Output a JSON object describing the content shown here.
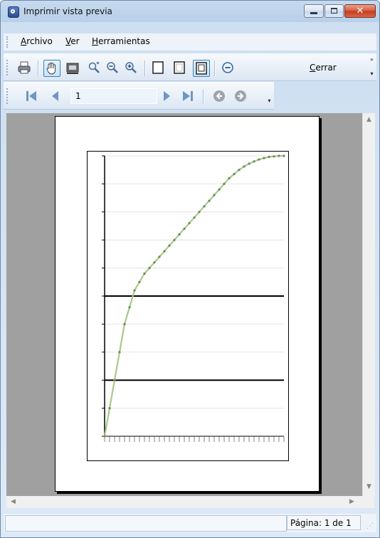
{
  "window": {
    "title": "Imprimir vista previa",
    "title_icon": "print-preview-app-icon",
    "controls": [
      "minimize-icon",
      "maximize-icon",
      "close-icon"
    ]
  },
  "menu": {
    "items": [
      {
        "label": "Archivo",
        "name": "menu-archivo"
      },
      {
        "label": "Ver",
        "name": "menu-ver"
      },
      {
        "label": "Herramientas",
        "name": "menu-herramientas"
      }
    ]
  },
  "toolbar": {
    "buttons": [
      {
        "name": "print-icon",
        "active": false
      },
      {
        "name": "hand-pan-icon",
        "active": true
      },
      {
        "name": "snapshot-icon",
        "active": false
      },
      {
        "name": "dynamic-zoom-icon",
        "active": false
      },
      {
        "name": "zoom-out-icon",
        "active": false
      },
      {
        "name": "zoom-in-icon",
        "active": false
      },
      {
        "name": "one-page-icon",
        "active": false
      },
      {
        "name": "margin-page-icon",
        "active": false
      },
      {
        "name": "page-setup-icon",
        "active": true
      }
    ],
    "close_icon": "close-circle-icon",
    "close_label": "Cerrar"
  },
  "navigation": {
    "first_icon": "first-page-icon",
    "prev_icon": "previous-page-icon",
    "page_value": "1",
    "next_icon": "next-page-icon",
    "last_icon": "last-page-icon",
    "back_icon": "back-icon",
    "forward_icon": "forward-icon"
  },
  "status": {
    "page_text": "Página: 1 de 1"
  },
  "chart_data": {
    "type": "line",
    "series": [
      {
        "values": [
          0,
          0.1,
          0.2,
          0.3,
          0.4,
          0.46,
          0.52,
          0.55,
          0.58,
          0.6,
          0.62,
          0.64,
          0.66,
          0.68,
          0.7,
          0.72,
          0.74,
          0.76,
          0.78,
          0.8,
          0.82,
          0.84,
          0.86,
          0.88,
          0.9,
          0.92,
          0.935,
          0.95,
          0.962,
          0.972,
          0.98,
          0.987,
          0.992,
          0.996,
          0.998,
          1.0,
          1.0
        ]
      }
    ],
    "hlines": [
      0.2,
      0.5
    ],
    "ylim": [
      0,
      1
    ],
    "grid": true,
    "line_color": "#a8c98a",
    "marker_color": "#6b8a5a"
  }
}
